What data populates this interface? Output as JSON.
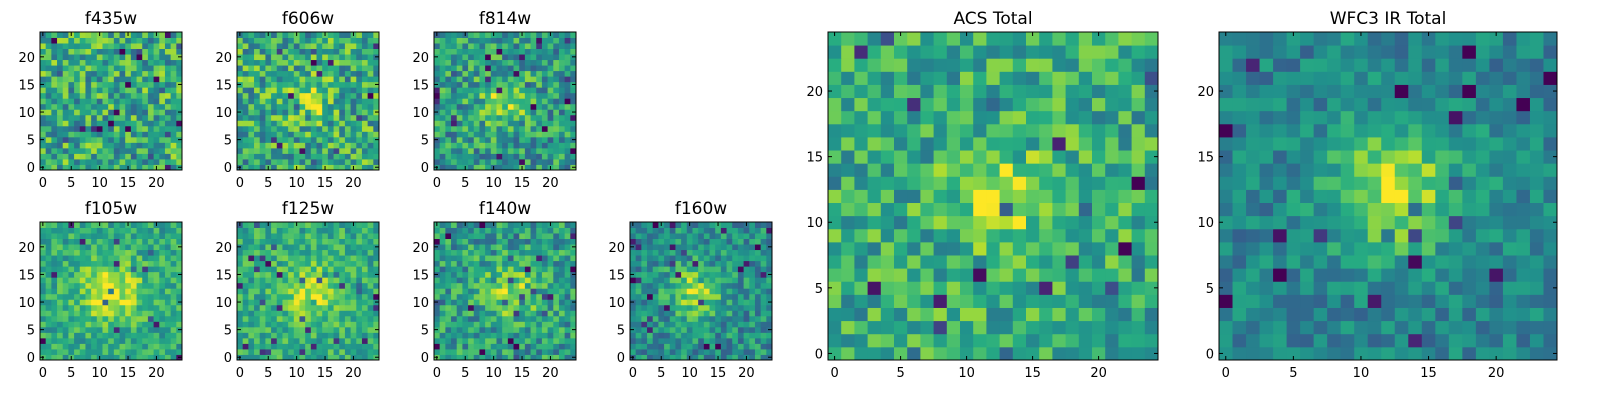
{
  "chart_data": [
    {
      "type": "heatmap",
      "title": "f435w",
      "xticks": [
        0,
        5,
        10,
        15,
        20
      ],
      "yticks": [
        0,
        5,
        10,
        15,
        20
      ],
      "xlim": [
        -0.5,
        24.5
      ],
      "ylim": [
        -0.5,
        24.5
      ],
      "grid": false,
      "colormap": "viridis",
      "pixels": "25x25",
      "blob": {
        "x": 12,
        "y": 12,
        "strength": 0.0,
        "width": 4
      },
      "noise": 0.55,
      "base": 0.62,
      "seed": 11
    },
    {
      "type": "heatmap",
      "title": "f606w",
      "xticks": [
        0,
        5,
        10,
        15,
        20
      ],
      "yticks": [
        0,
        5,
        10,
        15,
        20
      ],
      "xlim": [
        -0.5,
        24.5
      ],
      "ylim": [
        -0.5,
        24.5
      ],
      "grid": false,
      "colormap": "viridis",
      "pixels": "25x25",
      "blob": {
        "x": 12.5,
        "y": 12.5,
        "strength": 0.25,
        "width": 2.5
      },
      "noise": 0.55,
      "base": 0.62,
      "seed": 23
    },
    {
      "type": "heatmap",
      "title": "f814w",
      "xticks": [
        0,
        5,
        10,
        15,
        20
      ],
      "yticks": [
        0,
        5,
        10,
        15,
        20
      ],
      "xlim": [
        -0.5,
        24.5
      ],
      "ylim": [
        -0.5,
        24.5
      ],
      "grid": false,
      "colormap": "viridis",
      "pixels": "25x25",
      "blob": {
        "x": 12,
        "y": 12,
        "strength": 0.3,
        "width": 3
      },
      "noise": 0.5,
      "base": 0.55,
      "seed": 37
    },
    {
      "type": "heatmap",
      "title": "f105w",
      "xticks": [
        0,
        5,
        10,
        15,
        20
      ],
      "yticks": [
        0,
        5,
        10,
        15,
        20
      ],
      "xlim": [
        -0.5,
        24.5
      ],
      "ylim": [
        -0.5,
        24.5
      ],
      "grid": false,
      "colormap": "viridis",
      "pixels": "25x25",
      "blob": {
        "x": 12,
        "y": 12,
        "strength": 0.35,
        "width": 4
      },
      "noise": 0.35,
      "base": 0.6,
      "seed": 41
    },
    {
      "type": "heatmap",
      "title": "f125w",
      "xticks": [
        0,
        5,
        10,
        15,
        20
      ],
      "yticks": [
        0,
        5,
        10,
        15,
        20
      ],
      "xlim": [
        -0.5,
        24.5
      ],
      "ylim": [
        -0.5,
        24.5
      ],
      "grid": false,
      "colormap": "viridis",
      "pixels": "25x25",
      "blob": {
        "x": 12.5,
        "y": 12,
        "strength": 0.3,
        "width": 3.5
      },
      "noise": 0.35,
      "base": 0.62,
      "seed": 53
    },
    {
      "type": "heatmap",
      "title": "f140w",
      "xticks": [
        0,
        5,
        10,
        15,
        20
      ],
      "yticks": [
        0,
        5,
        10,
        15,
        20
      ],
      "xlim": [
        -0.5,
        24.5
      ],
      "ylim": [
        -0.5,
        24.5
      ],
      "grid": false,
      "colormap": "viridis",
      "pixels": "25x25",
      "blob": {
        "x": 13,
        "y": 12,
        "strength": 0.3,
        "width": 3.5
      },
      "noise": 0.45,
      "base": 0.55,
      "seed": 67
    },
    {
      "type": "heatmap",
      "title": "f160w",
      "xticks": [
        0,
        5,
        10,
        15,
        20
      ],
      "yticks": [
        0,
        5,
        10,
        15,
        20
      ],
      "xlim": [
        -0.5,
        24.5
      ],
      "ylim": [
        -0.5,
        24.5
      ],
      "grid": false,
      "colormap": "viridis",
      "pixels": "25x25",
      "blob": {
        "x": 11,
        "y": 12,
        "strength": 0.4,
        "width": 3
      },
      "noise": 0.4,
      "base": 0.5,
      "seed": 79
    },
    {
      "type": "heatmap",
      "title": "ACS Total",
      "xticks": [
        0,
        5,
        10,
        15,
        20
      ],
      "yticks": [
        0,
        5,
        10,
        15,
        20
      ],
      "xlim": [
        -0.5,
        24.5
      ],
      "ylim": [
        -0.5,
        24.5
      ],
      "grid": false,
      "colormap": "viridis",
      "pixels": "25x25",
      "blob": {
        "x": 12.5,
        "y": 12,
        "strength": 0.35,
        "width": 2.5
      },
      "noise": 0.45,
      "base": 0.62,
      "seed": 97
    },
    {
      "type": "heatmap",
      "title": "WFC3 IR Total",
      "xticks": [
        0,
        5,
        10,
        15,
        20
      ],
      "yticks": [
        0,
        5,
        10,
        15,
        20
      ],
      "xlim": [
        -0.5,
        24.5
      ],
      "ylim": [
        -0.5,
        24.5
      ],
      "grid": false,
      "colormap": "viridis",
      "pixels": "25x25",
      "blob": {
        "x": 12.5,
        "y": 12.5,
        "strength": 0.45,
        "width": 3.5
      },
      "noise": 0.3,
      "base": 0.45,
      "seed": 113
    }
  ]
}
